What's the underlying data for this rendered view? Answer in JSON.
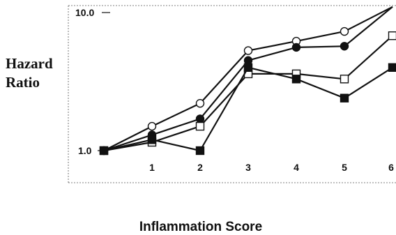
{
  "chart_data": {
    "type": "line",
    "title": "",
    "xlabel": "Inflammation Score",
    "ylabel_lines": [
      "Hazard",
      "Ratio"
    ],
    "yscale": "log",
    "ylim": [
      1.0,
      10.0
    ],
    "xlim": [
      0,
      6
    ],
    "x_ticks": [
      "1",
      "2",
      "3",
      "4",
      "5",
      "6"
    ],
    "y_ticks": [
      "1.0",
      "10.0"
    ],
    "grid": false,
    "x": [
      0,
      1,
      2,
      3,
      4,
      5,
      6
    ],
    "series": [
      {
        "marker": "circle-open",
        "values": [
          1.0,
          1.5,
          2.2,
          5.3,
          6.2,
          7.3,
          11.0
        ]
      },
      {
        "marker": "circle-filled",
        "values": [
          1.0,
          1.3,
          1.7,
          4.5,
          5.6,
          5.7,
          11.0
        ]
      },
      {
        "marker": "square-open",
        "values": [
          1.0,
          1.15,
          1.5,
          3.6,
          3.6,
          3.3,
          6.8
        ]
      },
      {
        "marker": "square-filled",
        "values": [
          1.0,
          1.2,
          1.0,
          4.0,
          3.3,
          2.4,
          4.0
        ]
      }
    ]
  }
}
